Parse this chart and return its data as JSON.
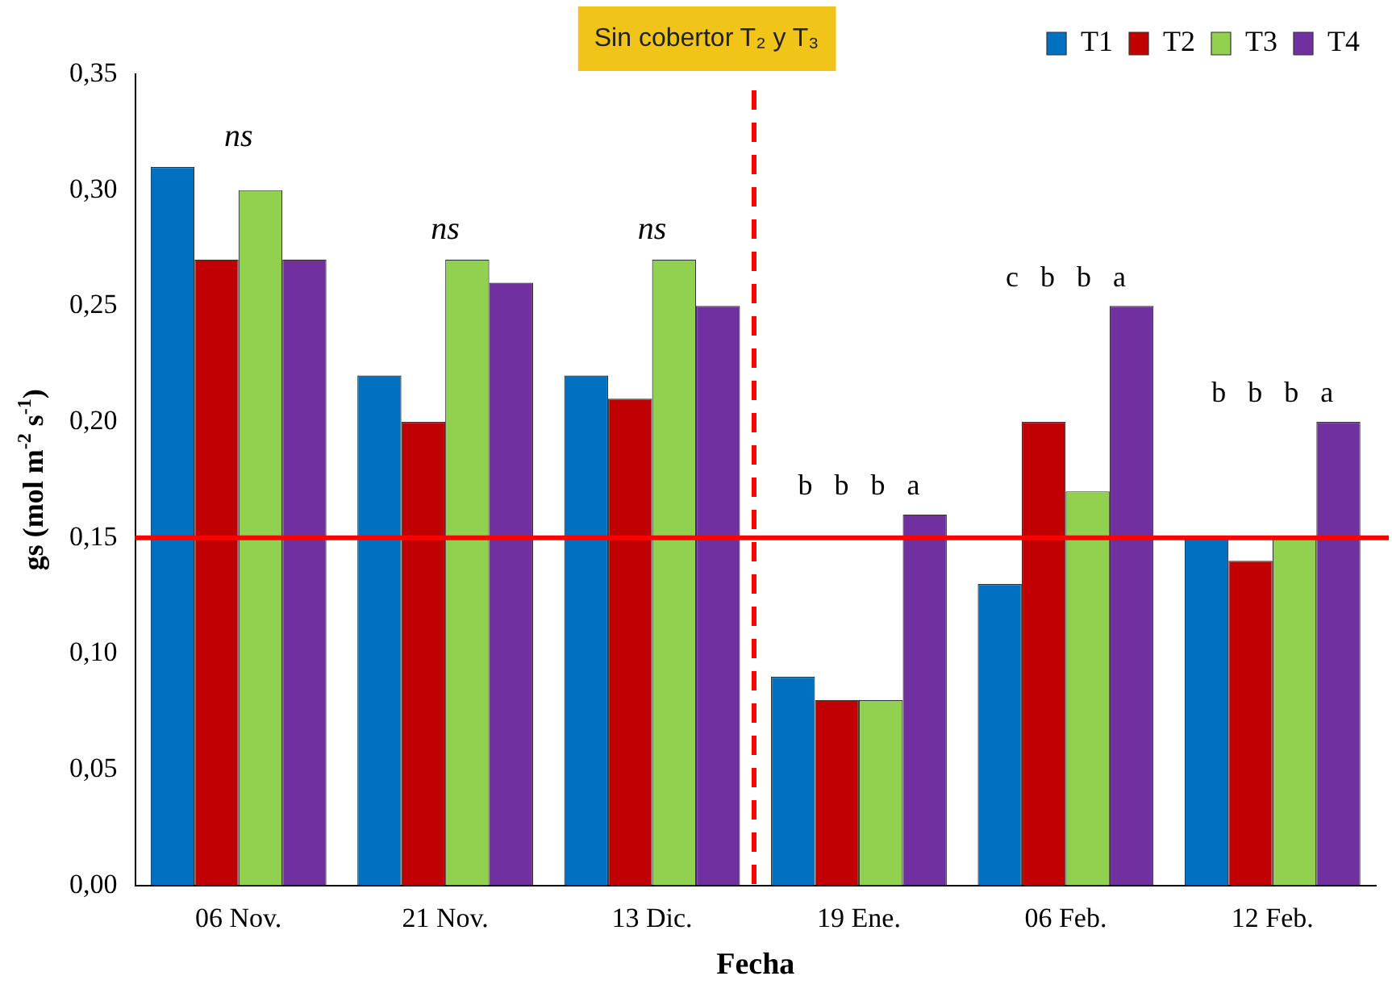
{
  "chart_data": {
    "type": "bar",
    "xlabel": "Fecha",
    "ylabel": "gs (mol m$^{-2}$ s$^{-1}$)",
    "categories": [
      "06 Nov.",
      "21 Nov.",
      "13 Dic.",
      "19 Ene.",
      "06 Feb.",
      "12 Feb."
    ],
    "series": [
      {
        "name": "T1",
        "color": "#0070c0",
        "values": [
          0.31,
          0.22,
          0.22,
          0.09,
          0.13,
          0.15
        ]
      },
      {
        "name": "T2",
        "color": "#c00000",
        "values": [
          0.27,
          0.2,
          0.21,
          0.08,
          0.2,
          0.14
        ]
      },
      {
        "name": "T3",
        "color": "#92d050",
        "values": [
          0.3,
          0.27,
          0.27,
          0.08,
          0.17,
          0.15
        ]
      },
      {
        "name": "T4",
        "color": "#7030a0",
        "values": [
          0.27,
          0.26,
          0.25,
          0.16,
          0.25,
          0.2
        ]
      }
    ],
    "ylim": [
      0,
      0.35
    ],
    "yticks": [
      {
        "value": 0,
        "label": "0,00"
      },
      {
        "value": 0.05,
        "label": "0,05"
      },
      {
        "value": 0.1,
        "label": "0,10"
      },
      {
        "value": 0.15,
        "label": "0,15"
      },
      {
        "value": 0.2,
        "label": "0,20"
      },
      {
        "value": 0.25,
        "label": "0,25"
      },
      {
        "value": 0.3,
        "label": "0,30"
      },
      {
        "value": 0.35,
        "label": "0,35"
      }
    ],
    "grid": false,
    "legend": "top right",
    "ref_lines": [
      {
        "axis": "y",
        "value": 0.15,
        "color": "#ff0000",
        "line_style": "solid"
      }
    ],
    "annotations": [
      "Sin cobertor T₂ y T₃",
      "ns",
      "ns",
      "ns",
      "b   b   b   a",
      "c   b   b   a",
      "b   b   b   a"
    ]
  }
}
